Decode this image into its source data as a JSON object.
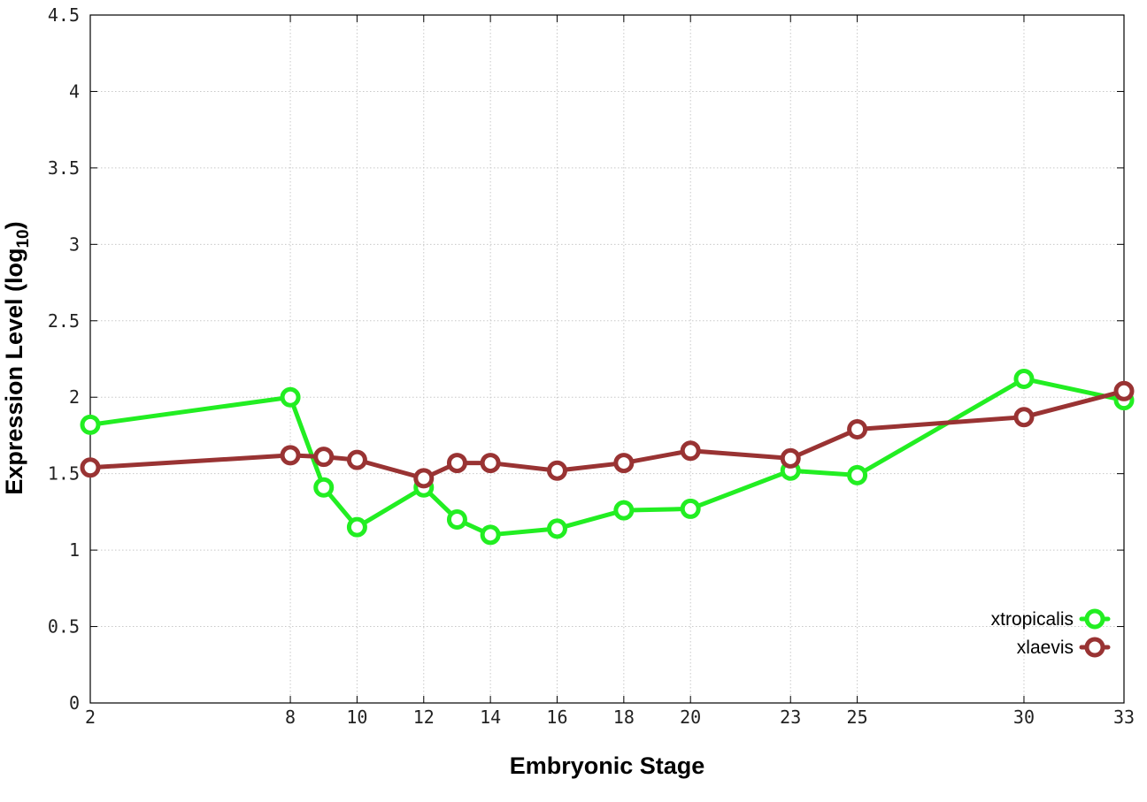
{
  "chart_data": {
    "type": "line",
    "xlabel": "Embryonic Stage",
    "ylabel_main": "Expression Level (log",
    "ylabel_sub": "10",
    "ylabel_close": ")",
    "xlim": [
      2,
      33
    ],
    "ylim": [
      0,
      4.5
    ],
    "x_ticks": [
      2,
      8,
      10,
      12,
      14,
      16,
      18,
      20,
      23,
      25,
      30,
      33
    ],
    "x_tick_labels": [
      "2",
      "8",
      "10",
      "12",
      "14",
      "16",
      "18",
      "20",
      "23",
      "25",
      "30",
      "33"
    ],
    "y_ticks": [
      0,
      0.5,
      1,
      1.5,
      2,
      2.5,
      3,
      3.5,
      4,
      4.5
    ],
    "y_tick_labels": [
      "0",
      "0.5",
      "1",
      "1.5",
      "2",
      "2.5",
      "3",
      "3.5",
      "4",
      "4.5"
    ],
    "grid": true,
    "legend_position": "bottom-right",
    "series": [
      {
        "name": "xtropicalis",
        "color": "#22ee22",
        "x": [
          2,
          8,
          9,
          10,
          12,
          13,
          14,
          16,
          18,
          20,
          23,
          25,
          30,
          33
        ],
        "values": [
          1.82,
          2.0,
          1.41,
          1.15,
          1.41,
          1.2,
          1.1,
          1.14,
          1.26,
          1.27,
          1.52,
          1.49,
          2.12,
          1.98
        ]
      },
      {
        "name": "xlaevis",
        "color": "#993333",
        "x": [
          2,
          8,
          9,
          10,
          12,
          13,
          14,
          16,
          18,
          20,
          23,
          25,
          30,
          33
        ],
        "values": [
          1.54,
          1.62,
          1.61,
          1.59,
          1.47,
          1.57,
          1.57,
          1.52,
          1.57,
          1.65,
          1.6,
          1.79,
          1.87,
          2.04
        ]
      }
    ]
  }
}
